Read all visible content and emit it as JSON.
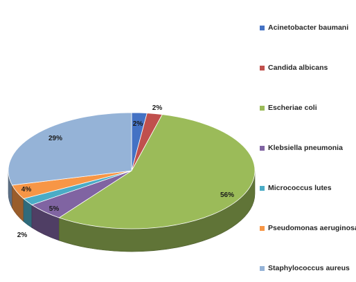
{
  "chart_data": {
    "type": "pie",
    "style": "3d",
    "legend_position": "right",
    "categories": [
      "Acinetobacter baumani",
      "Candida albicans",
      "Escheriae coli",
      "Klebsiella pneumonia",
      "Micrococcus lutes",
      "Pseudomonas aeruginosa",
      "Staphylococcus aureus"
    ],
    "values": [
      2,
      2,
      56,
      5,
      2,
      4,
      29
    ],
    "labels": [
      "2%",
      "2%",
      "56%",
      "5%",
      "2%",
      "4%",
      "29%"
    ],
    "colors": [
      "#4472C4",
      "#C0504D",
      "#9BBB59",
      "#8064A2",
      "#4BACC6",
      "#F79646",
      "#95B3D7"
    ]
  }
}
